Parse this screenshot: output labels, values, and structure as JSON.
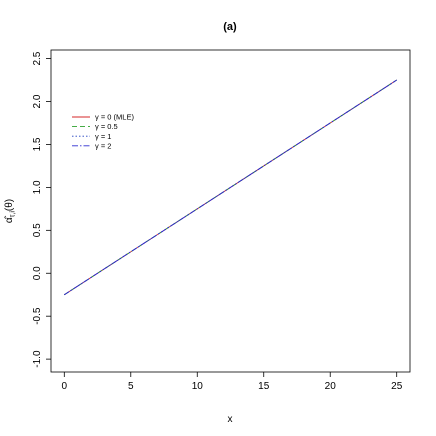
{
  "chart_data": {
    "type": "line",
    "title": "(a)",
    "xlabel": "x",
    "ylabel": "α̂_{τ,i}(θ)",
    "ylabel_main": "α̂",
    "ylabel_sub": "τ,i",
    "ylabel_paren": "(θ)",
    "xlim": [
      -1,
      26
    ],
    "ylim": [
      -1.15,
      2.6
    ],
    "xticks": [
      0,
      5,
      10,
      15,
      20,
      25
    ],
    "xtick_labels": [
      "0",
      "5",
      "10",
      "15",
      "20",
      "25"
    ],
    "yticks": [
      -1.0,
      -0.5,
      0.0,
      0.5,
      1.0,
      1.5,
      2.0,
      2.5
    ],
    "ytick_labels": [
      "-1.0",
      "-0.5",
      "0.0",
      "0.5",
      "1.0",
      "1.5",
      "2.0",
      "2.5"
    ],
    "grid": false,
    "legend_position": "top-left",
    "series": [
      {
        "name": "γ = 0 (MLE)",
        "color": "#d62728",
        "dash": "",
        "x": [
          0,
          25
        ],
        "y": [
          -0.25,
          2.25
        ]
      },
      {
        "name": "γ = 0.5",
        "color": "#2ca02c",
        "dash": "5,3",
        "x": [
          0,
          25
        ],
        "y": [
          -0.25,
          2.25
        ]
      },
      {
        "name": "γ = 1",
        "color": "#1f3fbf",
        "dash": "1.5,2",
        "x": [
          0,
          25
        ],
        "y": [
          -0.25,
          2.25
        ]
      },
      {
        "name": "γ = 2",
        "color": "#2b2bd0",
        "dash": "6,2,1.5,2",
        "x": [
          0,
          25
        ],
        "y": [
          -0.25,
          2.25
        ]
      }
    ]
  }
}
